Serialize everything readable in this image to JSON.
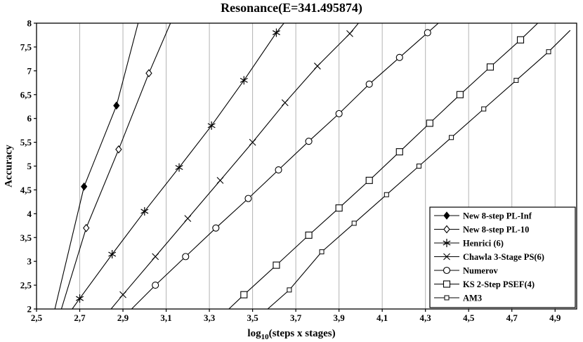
{
  "chart_data": {
    "type": "line",
    "title": "Resonance(E=341.495874)",
    "xlabel": "log10(steps x stages)",
    "xlabel_prefix": "log",
    "xlabel_sub": "10",
    "xlabel_suffix": "(steps x stages)",
    "ylabel": "Accuracy",
    "xlim": [
      2.5,
      5.0
    ],
    "ylim": [
      2,
      8
    ],
    "grid": "vertical-only",
    "grid_color": "#b3b3b3",
    "line_color": "#000000",
    "legend_position": "bottom-right",
    "x_ticks": [
      2.5,
      2.7,
      2.9,
      3.1,
      3.3,
      3.5,
      3.7,
      3.9,
      4.1,
      4.3,
      4.5,
      4.7,
      4.9
    ],
    "x_tick_labels": [
      "2,5",
      "2,7",
      "2,9",
      "3,1",
      "3,3",
      "3,5",
      "3,7",
      "3,9",
      "4,1",
      "4,3",
      "4,5",
      "4,7",
      "4,9"
    ],
    "y_ticks": [
      2,
      2.5,
      3,
      3.5,
      4,
      4.5,
      5,
      5.5,
      6,
      6.5,
      7,
      7.5,
      8
    ],
    "y_tick_labels": [
      "2",
      "2,5",
      "3",
      "3,5",
      "4",
      "4,5",
      "5",
      "5,5",
      "6",
      "6,5",
      "7",
      "7,5",
      "8"
    ],
    "series": [
      {
        "name": "New 8-step PL-Inf",
        "marker": "diamond-filled",
        "ext_low": [
          2.585,
          2.0
        ],
        "points": [
          [
            2.72,
            4.57
          ],
          [
            2.87,
            6.27
          ]
        ],
        "ext_high": [
          2.97,
          8.0
        ]
      },
      {
        "name": "New 8-step PL-10",
        "marker": "diamond-open",
        "ext_low": [
          2.615,
          2.0
        ],
        "points": [
          [
            2.73,
            3.7
          ],
          [
            2.88,
            5.35
          ],
          [
            3.02,
            6.95
          ]
        ],
        "ext_high": [
          3.12,
          8.0
        ]
      },
      {
        "name": "Henrici (6)",
        "marker": "asterisk",
        "ext_low": [
          2.665,
          2.0
        ],
        "points": [
          [
            2.7,
            2.22
          ],
          [
            2.85,
            3.15
          ],
          [
            3.0,
            4.05
          ],
          [
            3.16,
            4.97
          ],
          [
            3.31,
            5.85
          ],
          [
            3.46,
            6.8
          ],
          [
            3.61,
            7.8
          ]
        ],
        "ext_high": [
          3.645,
          8.0
        ]
      },
      {
        "name": "Chawla 3-Stage PS(6)",
        "marker": "x-cross",
        "ext_low": [
          2.845,
          2.0
        ],
        "points": [
          [
            2.9,
            2.3
          ],
          [
            3.05,
            3.1
          ],
          [
            3.2,
            3.9
          ],
          [
            3.35,
            4.7
          ],
          [
            3.5,
            5.5
          ],
          [
            3.65,
            6.33
          ],
          [
            3.8,
            7.1
          ],
          [
            3.95,
            7.78
          ]
        ],
        "ext_high": [
          3.99,
          8.0
        ]
      },
      {
        "name": "Numerov",
        "marker": "circle-open",
        "ext_low": [
          2.94,
          2.0
        ],
        "points": [
          [
            3.05,
            2.5
          ],
          [
            3.19,
            3.1
          ],
          [
            3.33,
            3.7
          ],
          [
            3.48,
            4.32
          ],
          [
            3.62,
            4.92
          ],
          [
            3.76,
            5.52
          ],
          [
            3.9,
            6.1
          ],
          [
            4.04,
            6.72
          ],
          [
            4.18,
            7.28
          ],
          [
            4.31,
            7.8
          ]
        ],
        "ext_high": [
          4.36,
          8.0
        ]
      },
      {
        "name": "KS 2-Step PSEF(4)",
        "marker": "square-open",
        "ext_low": [
          3.39,
          2.0
        ],
        "points": [
          [
            3.46,
            2.3
          ],
          [
            3.61,
            2.92
          ],
          [
            3.76,
            3.55
          ],
          [
            3.9,
            4.12
          ],
          [
            4.04,
            4.7
          ],
          [
            4.18,
            5.3
          ],
          [
            4.32,
            5.9
          ],
          [
            4.46,
            6.5
          ],
          [
            4.6,
            7.08
          ],
          [
            4.74,
            7.65
          ]
        ],
        "ext_high": [
          4.82,
          8.0
        ]
      },
      {
        "name": "AM3",
        "marker": "square-small",
        "ext_low": [
          3.57,
          2.0
        ],
        "points": [
          [
            3.67,
            2.4
          ],
          [
            3.82,
            3.2
          ],
          [
            3.97,
            3.8
          ],
          [
            4.12,
            4.4
          ],
          [
            4.27,
            5.0
          ],
          [
            4.42,
            5.6
          ],
          [
            4.57,
            6.2
          ],
          [
            4.72,
            6.8
          ],
          [
            4.87,
            7.4
          ]
        ],
        "ext_high": [
          4.97,
          7.85
        ]
      }
    ]
  }
}
